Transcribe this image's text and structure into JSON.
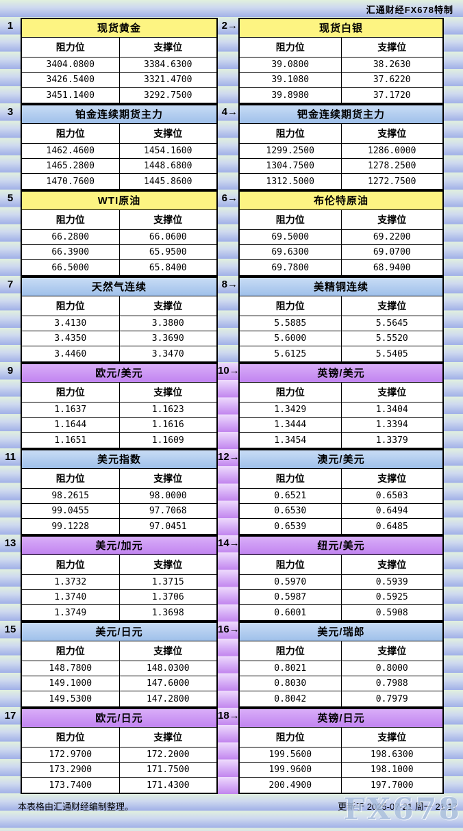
{
  "page": {
    "brand": "汇通财经FX678特制"
  },
  "column_labels": {
    "resistance": "阻力位",
    "support": "支撑位"
  },
  "sections": [
    {
      "label": "1",
      "title": "现货黄金",
      "theme": "yellow",
      "rows": [
        [
          "3404.0800",
          "3384.6300"
        ],
        [
          "3426.5400",
          "3321.4700"
        ],
        [
          "3451.1400",
          "3292.7500"
        ]
      ]
    },
    {
      "label": "2→",
      "title": "现货白银",
      "theme": "yellow",
      "rows": [
        [
          "39.0800",
          "38.2630"
        ],
        [
          "39.1080",
          "37.6220"
        ],
        [
          "39.8980",
          "37.1720"
        ]
      ]
    },
    {
      "label": "3",
      "title": "铂金连续期货主力",
      "theme": "blue",
      "rows": [
        [
          "1462.4600",
          "1454.1600"
        ],
        [
          "1465.2800",
          "1448.6800"
        ],
        [
          "1470.7600",
          "1445.8600"
        ]
      ]
    },
    {
      "label": "4→",
      "title": "钯金连续期货主力",
      "theme": "blue",
      "rows": [
        [
          "1299.2500",
          "1286.0000"
        ],
        [
          "1304.7500",
          "1278.2500"
        ],
        [
          "1312.5000",
          "1272.7500"
        ]
      ]
    },
    {
      "label": "5",
      "title": "WTI原油",
      "theme": "yellow",
      "rows": [
        [
          "66.2800",
          "66.0600"
        ],
        [
          "66.3900",
          "65.9500"
        ],
        [
          "66.5000",
          "65.8400"
        ]
      ]
    },
    {
      "label": "6→",
      "title": "布伦特原油",
      "theme": "yellow",
      "rows": [
        [
          "69.5000",
          "69.2200"
        ],
        [
          "69.6300",
          "69.0700"
        ],
        [
          "69.7800",
          "68.9400"
        ]
      ]
    },
    {
      "label": "7",
      "title": "天然气连续",
      "theme": "blue",
      "rows": [
        [
          "3.4130",
          "3.3800"
        ],
        [
          "3.4350",
          "3.3690"
        ],
        [
          "3.4460",
          "3.3470"
        ]
      ]
    },
    {
      "label": "8→",
      "title": "美精铜连续",
      "theme": "blue",
      "rows": [
        [
          "5.5885",
          "5.5645"
        ],
        [
          "5.6000",
          "5.5520"
        ],
        [
          "5.6125",
          "5.5405"
        ]
      ]
    },
    {
      "label": "9",
      "title": "欧元/美元",
      "theme": "purple",
      "rows": [
        [
          "1.1637",
          "1.1623"
        ],
        [
          "1.1644",
          "1.1616"
        ],
        [
          "1.1651",
          "1.1609"
        ]
      ]
    },
    {
      "label": "10→",
      "title": "英镑/美元",
      "theme": "purple",
      "rows": [
        [
          "1.3429",
          "1.3404"
        ],
        [
          "1.3444",
          "1.3394"
        ],
        [
          "1.3454",
          "1.3379"
        ]
      ]
    },
    {
      "label": "11",
      "title": "美元指数",
      "theme": "blue",
      "rows": [
        [
          "98.2615",
          "98.0000"
        ],
        [
          "99.0455",
          "97.7068"
        ],
        [
          "99.1228",
          "97.0451"
        ]
      ]
    },
    {
      "label": "12→",
      "title": "澳元/美元",
      "theme": "blue",
      "rows": [
        [
          "0.6521",
          "0.6503"
        ],
        [
          "0.6530",
          "0.6494"
        ],
        [
          "0.6539",
          "0.6485"
        ]
      ]
    },
    {
      "label": "13",
      "title": "美元/加元",
      "theme": "purple",
      "rows": [
        [
          "1.3732",
          "1.3715"
        ],
        [
          "1.3740",
          "1.3706"
        ],
        [
          "1.3749",
          "1.3698"
        ]
      ]
    },
    {
      "label": "14→",
      "title": "纽元/美元",
      "theme": "purple",
      "rows": [
        [
          "0.5970",
          "0.5939"
        ],
        [
          "0.5987",
          "0.5925"
        ],
        [
          "0.6001",
          "0.5908"
        ]
      ]
    },
    {
      "label": "15",
      "title": "美元/日元",
      "theme": "blue",
      "rows": [
        [
          "148.7800",
          "148.0300"
        ],
        [
          "149.1000",
          "147.6000"
        ],
        [
          "149.5300",
          "147.2800"
        ]
      ]
    },
    {
      "label": "16→",
      "title": "美元/瑞郎",
      "theme": "blue",
      "rows": [
        [
          "0.8021",
          "0.8000"
        ],
        [
          "0.8030",
          "0.7988"
        ],
        [
          "0.8042",
          "0.7979"
        ]
      ]
    },
    {
      "label": "17",
      "title": "欧元/日元",
      "theme": "purple",
      "rows": [
        [
          "172.9700",
          "172.2000"
        ],
        [
          "173.2900",
          "171.7500"
        ],
        [
          "173.7400",
          "171.4300"
        ]
      ]
    },
    {
      "label": "18→",
      "title": "英镑/日元",
      "theme": "purple",
      "rows": [
        [
          "199.5600",
          "198.6300"
        ],
        [
          "199.9600",
          "198.1000"
        ],
        [
          "200.4900",
          "197.7000"
        ]
      ]
    }
  ],
  "footer": {
    "note": "本表格由汇通财经编制整理。",
    "updated": "更新于 2025-07-21 周一 21:17"
  },
  "watermark": {
    "text": "FX678"
  },
  "colors": {
    "yellow_header": "#fdf482",
    "blue_header": "#aecbee",
    "purple_header": "#c98ff3",
    "band_top": "#e1f0de",
    "band_bottom": "#a4b3e8",
    "purple_band_bottom": "#c286ee",
    "table_bg": "#ffffff",
    "border": "#000000"
  }
}
